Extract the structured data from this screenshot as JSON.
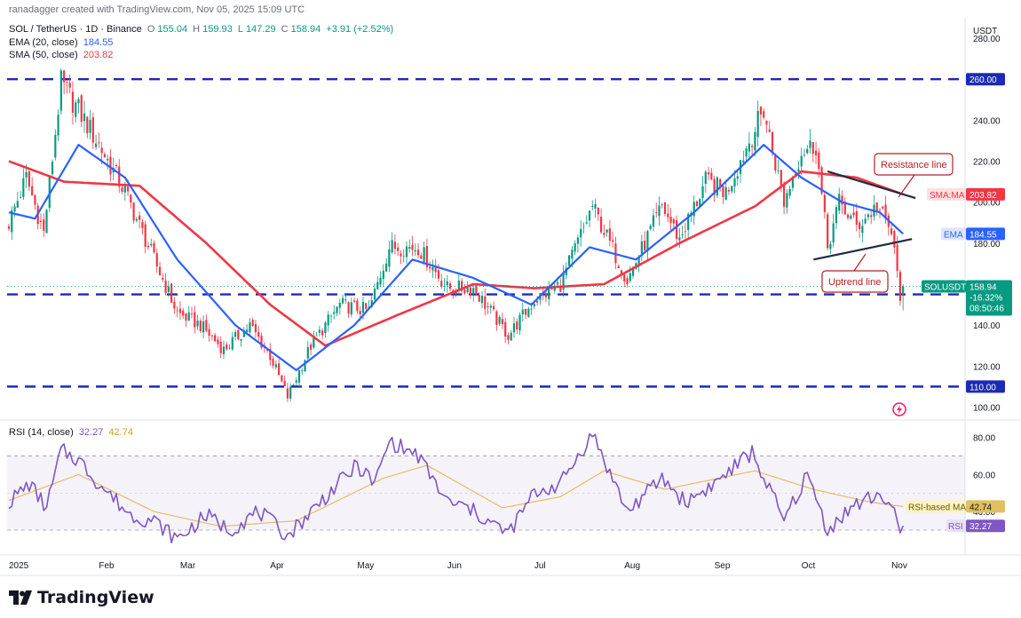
{
  "header": {
    "credit": "ranadagger created with TradingView.com, Nov 05, 2025 15:09 UTC",
    "symbol_line": "SOL / TetherUS · 1D · Binance",
    "ohlc": [
      {
        "label": "O",
        "value": "155.04"
      },
      {
        "label": "H",
        "value": "159.93"
      },
      {
        "label": "L",
        "value": "147.29"
      },
      {
        "label": "C",
        "value": "158.94"
      }
    ],
    "change": "+3.91 (+2.52%)",
    "ema_label": "EMA (20, close)",
    "ema_value": "184.55",
    "sma_label": "SMA (50, close)",
    "sma_value": "203.82",
    "rsi_label": "RSI (14, close)",
    "rsi_value": "32.27",
    "rsi_ma_value": "42.74"
  },
  "footer": {
    "brand": "TradingView"
  },
  "colors": {
    "up": "#089981",
    "down": "#f23645",
    "ema": "#2962ff",
    "sma": "#f23645",
    "levels": "#1b2bb4",
    "rsi": "#7e57c2",
    "rsi_ma": "#e0c060",
    "annotation": "#b22222"
  },
  "chart_data": [
    {
      "type": "candlestick",
      "title": "SOL / TetherUS · 1D · Binance",
      "currency": "USDT",
      "ylim": [
        95,
        290
      ],
      "y_ticks": [
        100,
        120,
        140,
        160,
        180,
        200,
        220,
        240,
        260,
        280
      ],
      "y_tick_labels": [
        "100.00",
        "120.00",
        "140.00",
        "160.00",
        "180.00",
        "200.00",
        "220.00",
        "240.00",
        "260.00",
        "280.00"
      ],
      "x_tick_labels": [
        "2025",
        "Feb",
        "Mar",
        "Apr",
        "May",
        "Jun",
        "Jul",
        "Aug",
        "Sep",
        "Oct",
        "Nov"
      ],
      "price_anchors": [
        {
          "date": "2025-01-01",
          "close": 190
        },
        {
          "date": "2025-01-07",
          "close": 212
        },
        {
          "date": "2025-01-13",
          "close": 185
        },
        {
          "date": "2025-01-19",
          "close": 258
        },
        {
          "date": "2025-01-25",
          "close": 245
        },
        {
          "date": "2025-02-01",
          "close": 228
        },
        {
          "date": "2025-02-10",
          "close": 205
        },
        {
          "date": "2025-02-20",
          "close": 172
        },
        {
          "date": "2025-02-28",
          "close": 146
        },
        {
          "date": "2025-03-08",
          "close": 140
        },
        {
          "date": "2025-03-16",
          "close": 128
        },
        {
          "date": "2025-03-25",
          "close": 140
        },
        {
          "date": "2025-04-01",
          "close": 125
        },
        {
          "date": "2025-04-07",
          "close": 105
        },
        {
          "date": "2025-04-15",
          "close": 130
        },
        {
          "date": "2025-04-25",
          "close": 150
        },
        {
          "date": "2025-05-05",
          "close": 147
        },
        {
          "date": "2025-05-12",
          "close": 178
        },
        {
          "date": "2025-05-22",
          "close": 178
        },
        {
          "date": "2025-06-01",
          "close": 158
        },
        {
          "date": "2025-06-10",
          "close": 158
        },
        {
          "date": "2025-06-22",
          "close": 135
        },
        {
          "date": "2025-07-01",
          "close": 152
        },
        {
          "date": "2025-07-10",
          "close": 160
        },
        {
          "date": "2025-07-21",
          "close": 198
        },
        {
          "date": "2025-08-02",
          "close": 162
        },
        {
          "date": "2025-08-14",
          "close": 198
        },
        {
          "date": "2025-08-20",
          "close": 182
        },
        {
          "date": "2025-08-29",
          "close": 210
        },
        {
          "date": "2025-09-05",
          "close": 205
        },
        {
          "date": "2025-09-18",
          "close": 245
        },
        {
          "date": "2025-09-25",
          "close": 200
        },
        {
          "date": "2025-10-01",
          "close": 225
        },
        {
          "date": "2025-10-06",
          "close": 228
        },
        {
          "date": "2025-10-10",
          "close": 178
        },
        {
          "date": "2025-10-14",
          "close": 200
        },
        {
          "date": "2025-10-20",
          "close": 188
        },
        {
          "date": "2025-10-27",
          "close": 198
        },
        {
          "date": "2025-11-01",
          "close": 185
        },
        {
          "date": "2025-11-04",
          "close": 155
        },
        {
          "date": "2025-11-05",
          "close": 158.94
        }
      ],
      "ema20_anchors": [
        {
          "date": "2025-01-01",
          "value": 195
        },
        {
          "date": "2025-01-10",
          "value": 192
        },
        {
          "date": "2025-01-25",
          "value": 228
        },
        {
          "date": "2025-02-10",
          "value": 212
        },
        {
          "date": "2025-02-28",
          "value": 172
        },
        {
          "date": "2025-03-20",
          "value": 140
        },
        {
          "date": "2025-04-10",
          "value": 118
        },
        {
          "date": "2025-04-30",
          "value": 140
        },
        {
          "date": "2025-05-20",
          "value": 172
        },
        {
          "date": "2025-06-10",
          "value": 163
        },
        {
          "date": "2025-06-30",
          "value": 150
        },
        {
          "date": "2025-07-20",
          "value": 178
        },
        {
          "date": "2025-08-05",
          "value": 172
        },
        {
          "date": "2025-08-25",
          "value": 195
        },
        {
          "date": "2025-09-18",
          "value": 228
        },
        {
          "date": "2025-10-01",
          "value": 212
        },
        {
          "date": "2025-10-15",
          "value": 200
        },
        {
          "date": "2025-10-28",
          "value": 195
        },
        {
          "date": "2025-11-05",
          "value": 184.55
        }
      ],
      "sma50_anchors": [
        {
          "date": "2025-01-01",
          "value": 220
        },
        {
          "date": "2025-01-20",
          "value": 210
        },
        {
          "date": "2025-02-15",
          "value": 208
        },
        {
          "date": "2025-03-10",
          "value": 180
        },
        {
          "date": "2025-04-01",
          "value": 150
        },
        {
          "date": "2025-04-20",
          "value": 130
        },
        {
          "date": "2025-05-15",
          "value": 145
        },
        {
          "date": "2025-06-10",
          "value": 160
        },
        {
          "date": "2025-07-01",
          "value": 158
        },
        {
          "date": "2025-07-25",
          "value": 160
        },
        {
          "date": "2025-08-20",
          "value": 180
        },
        {
          "date": "2025-09-15",
          "value": 198
        },
        {
          "date": "2025-10-01",
          "value": 215
        },
        {
          "date": "2025-10-20",
          "value": 212
        },
        {
          "date": "2025-11-05",
          "value": 203.82
        }
      ],
      "horizontal_levels": [
        {
          "value": 260,
          "label": "260.00"
        },
        {
          "value": 155,
          "label": "155.00"
        },
        {
          "value": 110,
          "label": "110.00"
        }
      ],
      "price_labels": [
        {
          "name": "SMA:MA",
          "value": "203.82",
          "price": 203.82
        },
        {
          "name": "EMA",
          "value": "184.55",
          "price": 184.55
        },
        {
          "name": "SOLUSDT",
          "value": "158.94",
          "price": 158.94,
          "change": "-16.32%",
          "countdown": "08:50:46"
        }
      ],
      "annotations": [
        {
          "text": "Resistance line",
          "line_from": {
            "date": "2025-10-10",
            "value": 215
          },
          "line_to": {
            "date": "2025-11-05",
            "value": 202
          }
        },
        {
          "text": "Uptrend line",
          "line_from": {
            "date": "2025-10-07",
            "value": 172
          },
          "line_to": {
            "date": "2025-11-05",
            "value": 182
          }
        }
      ]
    },
    {
      "type": "line",
      "title": "RSI (14, close)",
      "ylim": [
        18,
        88
      ],
      "y_ticks": [
        40,
        60,
        80
      ],
      "y_tick_labels": [
        "40.00",
        "60.00",
        "80.00"
      ],
      "band": [
        30,
        70
      ],
      "midline": 50,
      "rsi_anchors": [
        {
          "date": "2025-01-01",
          "value": 45
        },
        {
          "date": "2025-01-08",
          "value": 55
        },
        {
          "date": "2025-01-14",
          "value": 42
        },
        {
          "date": "2025-01-19",
          "value": 73
        },
        {
          "date": "2025-01-25",
          "value": 68
        },
        {
          "date": "2025-02-01",
          "value": 55
        },
        {
          "date": "2025-02-12",
          "value": 38
        },
        {
          "date": "2025-02-20",
          "value": 35
        },
        {
          "date": "2025-02-28",
          "value": 25
        },
        {
          "date": "2025-03-10",
          "value": 38
        },
        {
          "date": "2025-03-18",
          "value": 30
        },
        {
          "date": "2025-03-28",
          "value": 40
        },
        {
          "date": "2025-04-07",
          "value": 27
        },
        {
          "date": "2025-04-20",
          "value": 48
        },
        {
          "date": "2025-05-01",
          "value": 65
        },
        {
          "date": "2025-05-07",
          "value": 55
        },
        {
          "date": "2025-05-12",
          "value": 78
        },
        {
          "date": "2025-05-22",
          "value": 70
        },
        {
          "date": "2025-06-01",
          "value": 45
        },
        {
          "date": "2025-06-08",
          "value": 42
        },
        {
          "date": "2025-06-22",
          "value": 28
        },
        {
          "date": "2025-07-01",
          "value": 50
        },
        {
          "date": "2025-07-10",
          "value": 55
        },
        {
          "date": "2025-07-21",
          "value": 82
        },
        {
          "date": "2025-08-02",
          "value": 40
        },
        {
          "date": "2025-08-14",
          "value": 58
        },
        {
          "date": "2025-08-22",
          "value": 45
        },
        {
          "date": "2025-09-01",
          "value": 55
        },
        {
          "date": "2025-09-14",
          "value": 72
        },
        {
          "date": "2025-09-25",
          "value": 35
        },
        {
          "date": "2025-10-03",
          "value": 60
        },
        {
          "date": "2025-10-10",
          "value": 30
        },
        {
          "date": "2025-10-18",
          "value": 42
        },
        {
          "date": "2025-10-28",
          "value": 50
        },
        {
          "date": "2025-11-01",
          "value": 42
        },
        {
          "date": "2025-11-04",
          "value": 28
        },
        {
          "date": "2025-11-05",
          "value": 32.27
        }
      ],
      "rsi_ma_anchors": [
        {
          "date": "2025-01-01",
          "value": 46
        },
        {
          "date": "2025-01-25",
          "value": 60
        },
        {
          "date": "2025-02-20",
          "value": 40
        },
        {
          "date": "2025-03-15",
          "value": 32
        },
        {
          "date": "2025-04-10",
          "value": 35
        },
        {
          "date": "2025-05-10",
          "value": 58
        },
        {
          "date": "2025-05-25",
          "value": 65
        },
        {
          "date": "2025-06-20",
          "value": 42
        },
        {
          "date": "2025-07-10",
          "value": 48
        },
        {
          "date": "2025-07-25",
          "value": 62
        },
        {
          "date": "2025-08-15",
          "value": 52
        },
        {
          "date": "2025-09-15",
          "value": 62
        },
        {
          "date": "2025-10-05",
          "value": 52
        },
        {
          "date": "2025-10-25",
          "value": 45
        },
        {
          "date": "2025-11-05",
          "value": 42.74
        }
      ],
      "price_labels": [
        {
          "name": "RSI-based MA",
          "value": "42.74",
          "price": 42.74
        },
        {
          "name": "RSI",
          "value": "32.27",
          "price": 32.27
        }
      ]
    }
  ]
}
